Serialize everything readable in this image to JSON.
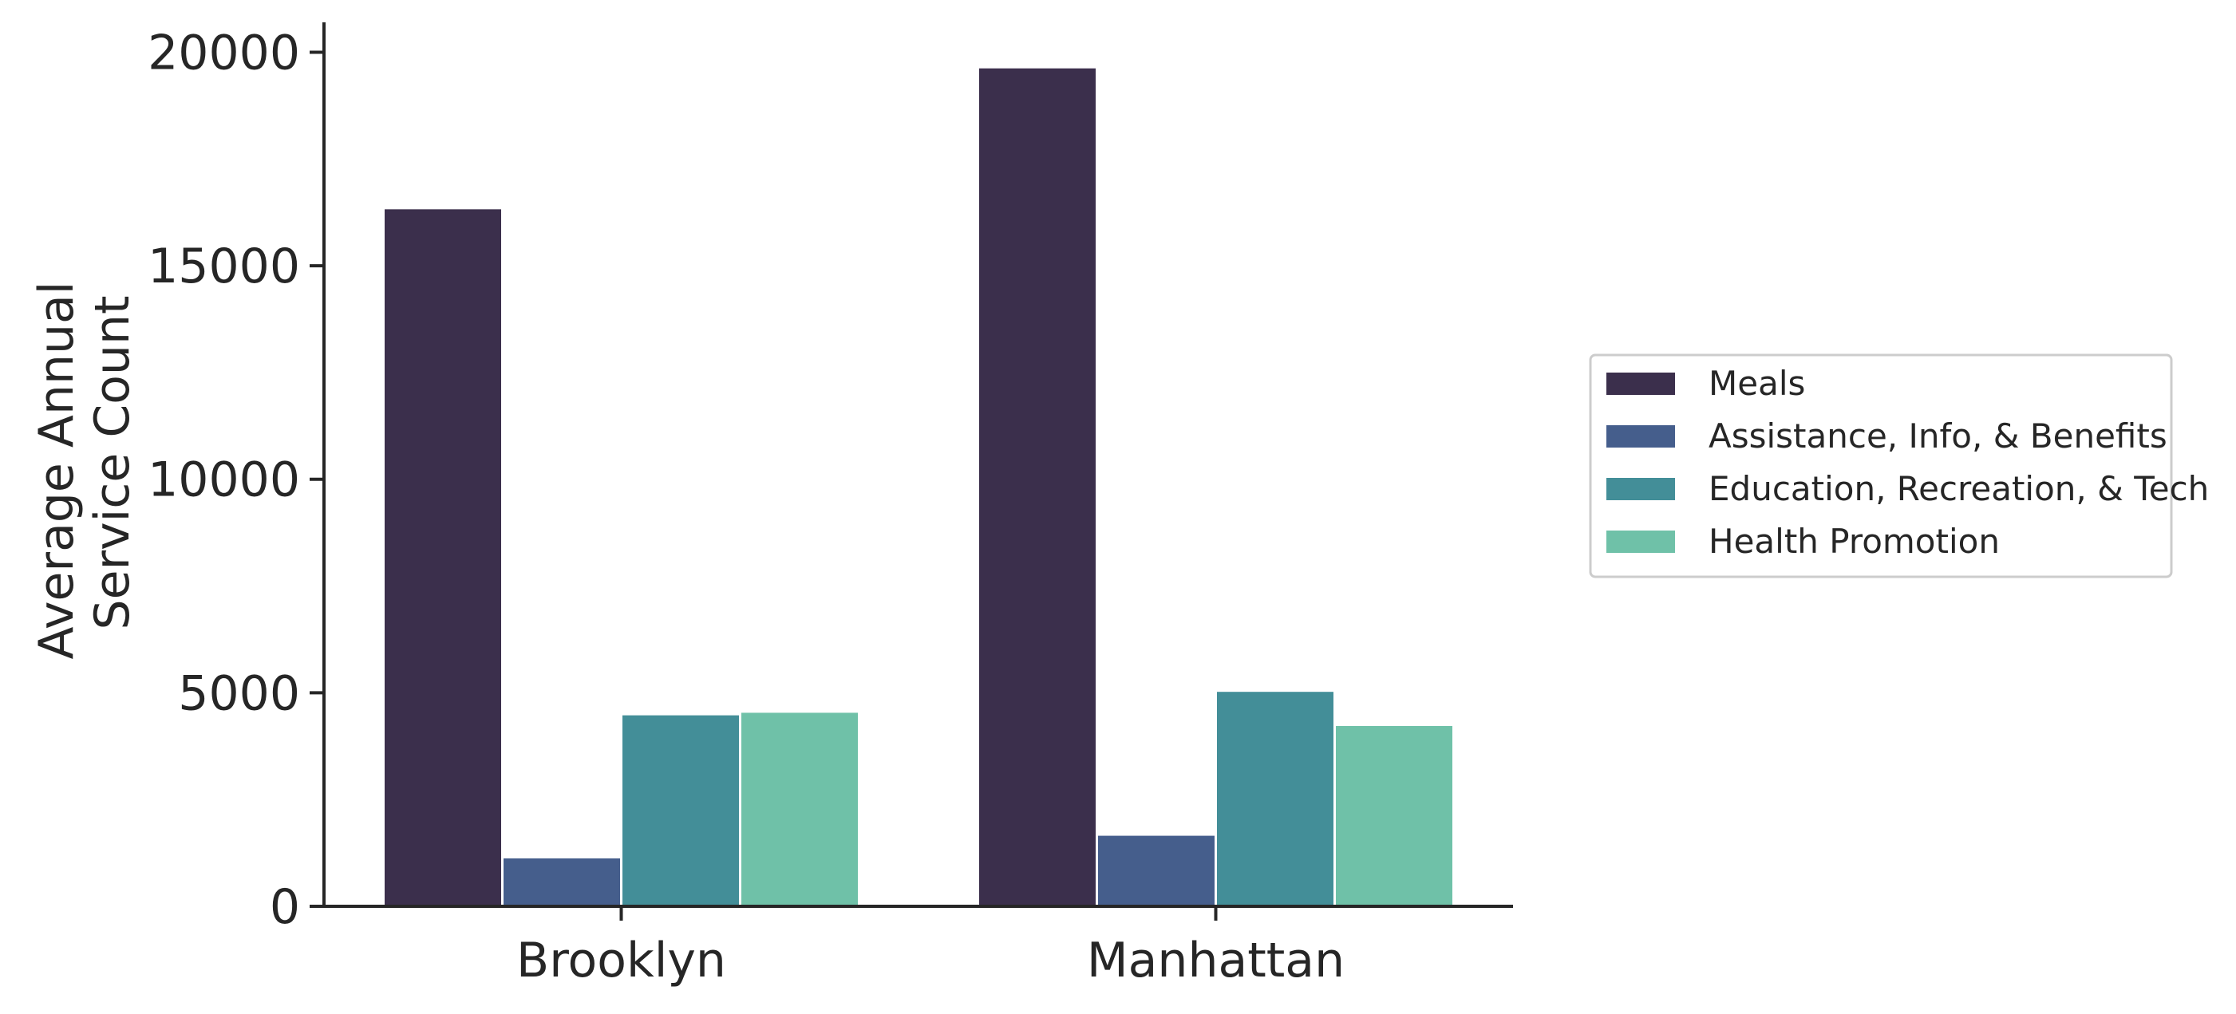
{
  "chart_data": {
    "type": "bar",
    "title": "",
    "xlabel": "",
    "ylabel_lines": [
      "Average Annual",
      "Service Count"
    ],
    "categories": [
      "Brooklyn",
      "Manhattan"
    ],
    "series": [
      {
        "name": "Meals",
        "color": "#3b2f4c",
        "values": [
          16350,
          19650
        ]
      },
      {
        "name": "Assistance, Info, & Benefits",
        "color": "#455e8c",
        "values": [
          1150,
          1680
        ]
      },
      {
        "name": "Education, Recreation, & Tech",
        "color": "#438e98",
        "values": [
          4500,
          5050
        ]
      },
      {
        "name": "Health Promotion",
        "color": "#6fc1a8",
        "values": [
          4560,
          4250
        ]
      }
    ],
    "ylim": [
      0,
      20700
    ],
    "yticks": [
      {
        "value": 0,
        "label": "0"
      },
      {
        "value": 5000,
        "label": "5000"
      },
      {
        "value": 10000,
        "label": "10000"
      },
      {
        "value": 15000,
        "label": "15000"
      },
      {
        "value": 20000,
        "label": "20000"
      }
    ],
    "grid": false,
    "legend_position": "right-outside"
  }
}
